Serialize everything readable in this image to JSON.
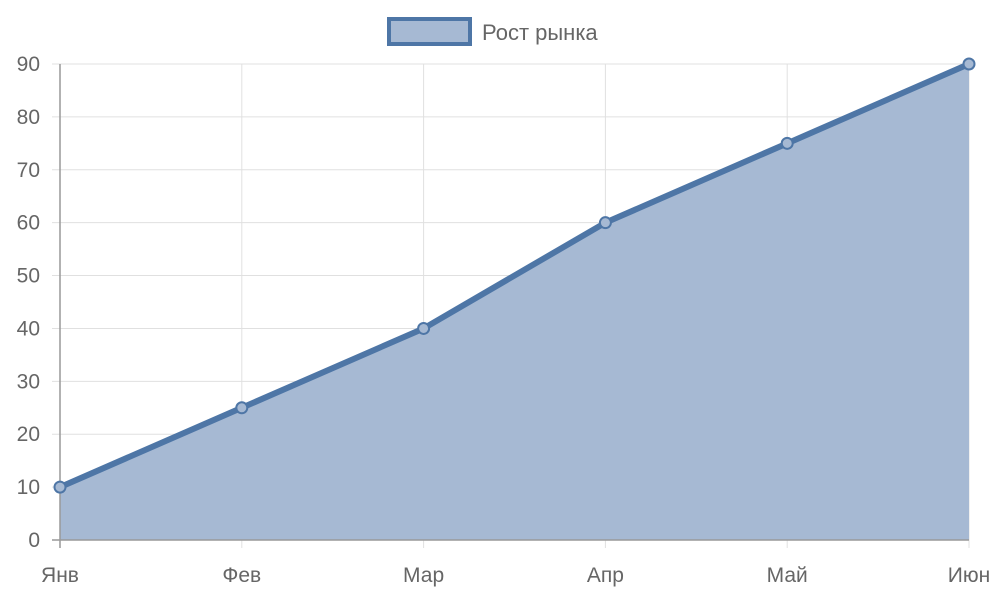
{
  "chart_data": {
    "type": "area",
    "categories": [
      "Янв",
      "Фев",
      "Мар",
      "Апр",
      "Май",
      "Июн"
    ],
    "series": [
      {
        "name": "Рост рынка",
        "values": [
          10,
          25,
          40,
          60,
          75,
          90
        ]
      }
    ],
    "title": "",
    "xlabel": "",
    "ylabel": "",
    "ylim": [
      0,
      90
    ],
    "yticks": [
      0,
      10,
      20,
      30,
      40,
      50,
      60,
      70,
      80,
      90
    ],
    "grid": true,
    "legend_position": "top-center",
    "colors": {
      "line": "#4e76a6",
      "fill": "#a6b9d3",
      "grid": "#e0e0e0",
      "axis": "#999999",
      "text": "#666666"
    }
  }
}
